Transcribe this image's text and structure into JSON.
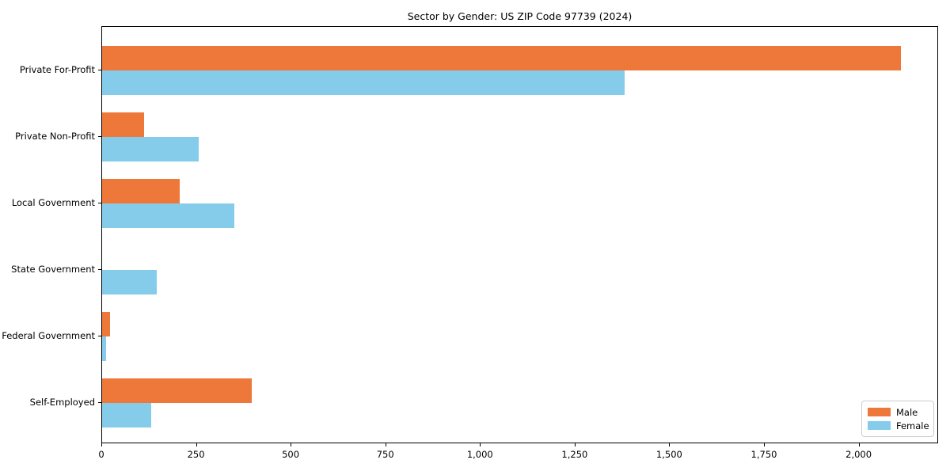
{
  "chart_data": {
    "type": "bar",
    "orientation": "horizontal",
    "title": "Sector by Gender: US ZIP Code 97739 (2024)",
    "categories": [
      "Private For-Profit",
      "Private Non-Profit",
      "Local Government",
      "State Government",
      "Federal Government",
      "Self-Employed"
    ],
    "series": [
      {
        "name": "Male",
        "color": "#ED7839",
        "values": [
          2110,
          110,
          205,
          0,
          20,
          395
        ]
      },
      {
        "name": "Female",
        "color": "#85CCEA",
        "values": [
          1380,
          255,
          350,
          145,
          10,
          130
        ]
      }
    ],
    "xlabel": "",
    "ylabel": "",
    "xlim": [
      0,
      2210
    ],
    "x_ticks": [
      0,
      250,
      500,
      750,
      1000,
      1250,
      1500,
      1750,
      2000
    ],
    "x_tick_labels": [
      "0",
      "250",
      "500",
      "750",
      "1,000",
      "1,250",
      "1,500",
      "1,750",
      "2,000"
    ],
    "grid": false,
    "legend": {
      "position": "lower right",
      "entries": [
        "Male",
        "Female"
      ]
    },
    "colors": {
      "male": "#ED7839",
      "female": "#85CCEA",
      "spine": "#000000",
      "background": "#ffffff"
    }
  }
}
